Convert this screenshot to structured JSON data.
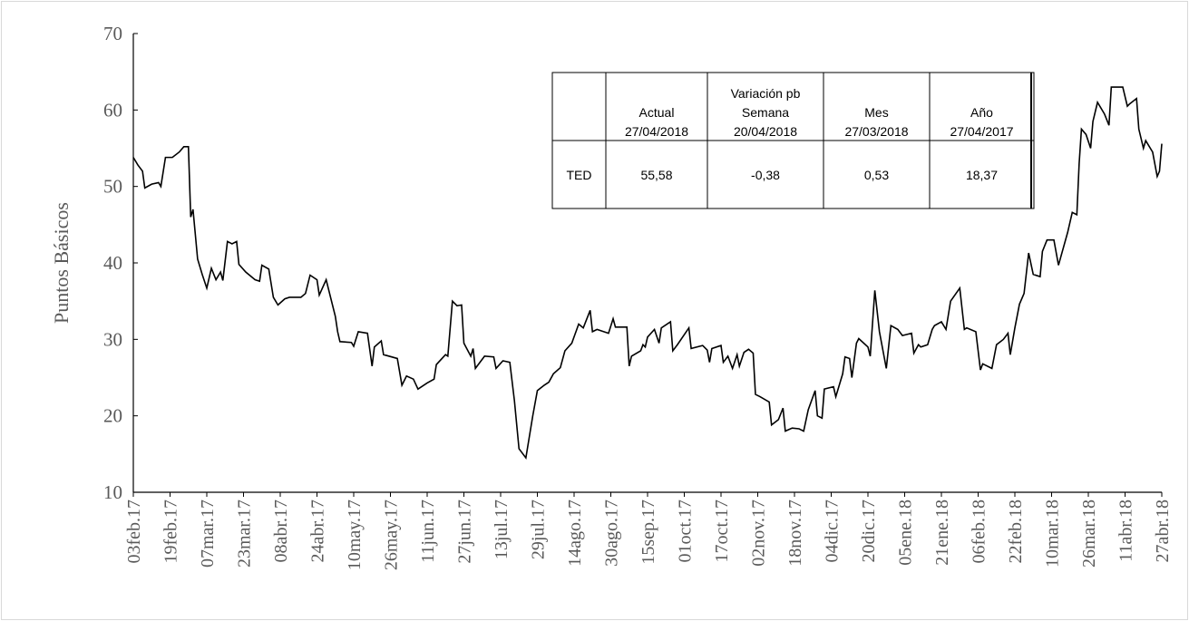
{
  "chart_data": {
    "type": "line",
    "y_label": "Puntos Básicos",
    "series": [
      {
        "name": "TED",
        "color": "#000000",
        "values": [
          53.8,
          52.8,
          52,
          49.8,
          50.3,
          50.5,
          50,
          53.8,
          53.8,
          54.5,
          55.2,
          55.2,
          46,
          47,
          40.5,
          38.5,
          36.7,
          39.3,
          37.8,
          38.8,
          37.7,
          42.8,
          42.5,
          42.8,
          39.8,
          38.8,
          37.8,
          37.6,
          39.7,
          39.2,
          35.5,
          34.5,
          35.3,
          35.5,
          35.5,
          36,
          38.4,
          37.8,
          35.8,
          37.8,
          33,
          31,
          29.7,
          29.6,
          29.1,
          31,
          30.8,
          26.5,
          29,
          29.8,
          28,
          27.5,
          24,
          25.2,
          24.8,
          23.5,
          24.3,
          24.8,
          26.7,
          28,
          27.8,
          35,
          34.4,
          34.5,
          29.5,
          27.8,
          28.8,
          26.2,
          27.8,
          27.7,
          26.2,
          27.2,
          27,
          22,
          15.7,
          14.5,
          20,
          23.3,
          24,
          24.4,
          25.5,
          26.3,
          28.5,
          29.5,
          32,
          31.5,
          33.8,
          31,
          31.3,
          30.8,
          32.7,
          31.6,
          31.6,
          26.5,
          27.8,
          28.5,
          29.3,
          29,
          30.3,
          31.3,
          29.5,
          31.5,
          32.3,
          28.5,
          29.3,
          31.5,
          28.8,
          29.2,
          28.6,
          27,
          28.8,
          29.2,
          27,
          27.8,
          26.2,
          28,
          26.5,
          28.3,
          28.7,
          28.2,
          22.8,
          22.5,
          21.8,
          18.8,
          19.5,
          21,
          18,
          18.4,
          18.3,
          18,
          20.8,
          23.3,
          20,
          19.7,
          23.5,
          23.8,
          22.5,
          25.5,
          27.7,
          27.5,
          25,
          29.5,
          30.1,
          29,
          27.8,
          36.4,
          31,
          26.2,
          31.8,
          31.3,
          30.5,
          30.8,
          28.2,
          29.3,
          29,
          29.3,
          31.3,
          31.8,
          32.3,
          31.3,
          35,
          36.7,
          31.3,
          31.5,
          31,
          26,
          26.8,
          26.2,
          29.3,
          30,
          30.8,
          28,
          31.5,
          34.6,
          36,
          41.3,
          38.5,
          38.2,
          41.5,
          43,
          43,
          39.7,
          44,
          46.6,
          46.3,
          53,
          57.5,
          56.8,
          55,
          58.5,
          61,
          59.5,
          58,
          63,
          63,
          63,
          60.5,
          60.8,
          61.5,
          57.5,
          55,
          56,
          54.5,
          51.3,
          52,
          55.58
        ]
      }
    ],
    "x": [
      "2017-02-03",
      "2017-02-05",
      "2017-02-07",
      "2017-02-08",
      "2017-02-11",
      "2017-02-14",
      "2017-02-15",
      "2017-02-17",
      "2017-02-20",
      "2017-02-23",
      "2017-02-25",
      "2017-02-27",
      "2017-02-28",
      "2017-03-01",
      "2017-03-03",
      "2017-03-05",
      "2017-03-07",
      "2017-03-09",
      "2017-03-11",
      "2017-03-13",
      "2017-03-14",
      "2017-03-16",
      "2017-03-18",
      "2017-03-20",
      "2017-03-21",
      "2017-03-24",
      "2017-03-28",
      "2017-03-30",
      "2017-03-31",
      "2017-04-03",
      "2017-04-05",
      "2017-04-07",
      "2017-04-10",
      "2017-04-12",
      "2017-04-17",
      "2017-04-19",
      "2017-04-21",
      "2017-04-24",
      "2017-04-25",
      "2017-04-28",
      "2017-05-02",
      "2017-05-03",
      "2017-05-04",
      "2017-05-09",
      "2017-05-10",
      "2017-05-12",
      "2017-05-16",
      "2017-05-18",
      "2017-05-19",
      "2017-05-22",
      "2017-05-23",
      "2017-05-29",
      "2017-05-31",
      "2017-06-02",
      "2017-06-05",
      "2017-06-07",
      "2017-06-11",
      "2017-06-14",
      "2017-06-15",
      "2017-06-19",
      "2017-06-20",
      "2017-06-22",
      "2017-06-24",
      "2017-06-26",
      "2017-06-27",
      "2017-06-30",
      "2017-07-01",
      "2017-07-02",
      "2017-07-06",
      "2017-07-10",
      "2017-07-11",
      "2017-07-14",
      "2017-07-17",
      "2017-07-19",
      "2017-07-21",
      "2017-07-24",
      "2017-07-27",
      "2017-07-29",
      "2017-08-01",
      "2017-08-03",
      "2017-08-05",
      "2017-08-08",
      "2017-08-10",
      "2017-08-13",
      "2017-08-16",
      "2017-08-18",
      "2017-08-21",
      "2017-08-22",
      "2017-08-24",
      "2017-08-29",
      "2017-08-31",
      "2017-09-01",
      "2017-09-06",
      "2017-09-07",
      "2017-09-08",
      "2017-09-12",
      "2017-09-13",
      "2017-09-14",
      "2017-09-15",
      "2017-09-18",
      "2017-09-20",
      "2017-09-21",
      "2017-09-25",
      "2017-09-26",
      "2017-09-28",
      "2017-10-03",
      "2017-10-04",
      "2017-10-09",
      "2017-10-11",
      "2017-10-12",
      "2017-10-13",
      "2017-10-17",
      "2017-10-18",
      "2017-10-20",
      "2017-10-22",
      "2017-10-24",
      "2017-10-25",
      "2017-10-27",
      "2017-10-29",
      "2017-10-31",
      "2017-11-01",
      "2017-11-03",
      "2017-11-07",
      "2017-11-08",
      "2017-11-11",
      "2017-11-13",
      "2017-11-14",
      "2017-11-17",
      "2017-11-20",
      "2017-11-22",
      "2017-11-24",
      "2017-11-27",
      "2017-11-28",
      "2017-11-30",
      "2017-12-01",
      "2017-12-05",
      "2017-12-06",
      "2017-12-09",
      "2017-12-10",
      "2017-12-12",
      "2017-12-13",
      "2017-12-15",
      "2017-12-16",
      "2017-12-20",
      "2017-12-21",
      "2017-12-23",
      "2017-12-25",
      "2017-12-28",
      "2017-12-30",
      "2018-01-02",
      "2018-01-04",
      "2018-01-08",
      "2018-01-09",
      "2018-01-11",
      "2018-01-12",
      "2018-01-15",
      "2018-01-17",
      "2018-01-18",
      "2018-01-21",
      "2018-01-23",
      "2018-01-25",
      "2018-01-29",
      "2018-01-31",
      "2018-02-01",
      "2018-02-05",
      "2018-02-07",
      "2018-02-08",
      "2018-02-12",
      "2018-02-14",
      "2018-02-17",
      "2018-02-19",
      "2018-02-20",
      "2018-02-22",
      "2018-02-24",
      "2018-02-26",
      "2018-02-28",
      "2018-03-02",
      "2018-03-05",
      "2018-03-06",
      "2018-03-08",
      "2018-03-11",
      "2018-03-13",
      "2018-03-17",
      "2018-03-19",
      "2018-03-21",
      "2018-03-22",
      "2018-03-23",
      "2018-03-25",
      "2018-03-27",
      "2018-03-28",
      "2018-03-30",
      "2018-04-02",
      "2018-04-04",
      "2018-04-05",
      "2018-04-08",
      "2018-04-10",
      "2018-04-12",
      "2018-04-13",
      "2018-04-16",
      "2018-04-17",
      "2018-04-19",
      "2018-04-20",
      "2018-04-23",
      "2018-04-25",
      "2018-04-26",
      "2018-04-27"
    ],
    "xlim": [
      "2017-02-03",
      "2018-04-27"
    ],
    "xticks": [
      {
        "value": "2017-02-03",
        "label": "03feb.17"
      },
      {
        "value": "2017-02-19",
        "label": "19feb.17"
      },
      {
        "value": "2017-03-07",
        "label": "07mar.17"
      },
      {
        "value": "2017-03-23",
        "label": "23mar.17"
      },
      {
        "value": "2017-04-08",
        "label": "08abr.17"
      },
      {
        "value": "2017-04-24",
        "label": "24abr.17"
      },
      {
        "value": "2017-05-10",
        "label": "10may.17"
      },
      {
        "value": "2017-05-26",
        "label": "26may.17"
      },
      {
        "value": "2017-06-11",
        "label": "11jun.17"
      },
      {
        "value": "2017-06-27",
        "label": "27jun.17"
      },
      {
        "value": "2017-07-13",
        "label": "13jul.17"
      },
      {
        "value": "2017-07-29",
        "label": "29jul.17"
      },
      {
        "value": "2017-08-14",
        "label": "14ago.17"
      },
      {
        "value": "2017-08-30",
        "label": "30ago.17"
      },
      {
        "value": "2017-09-15",
        "label": "15sep.17"
      },
      {
        "value": "2017-10-01",
        "label": "01oct.17"
      },
      {
        "value": "2017-10-17",
        "label": "17oct.17"
      },
      {
        "value": "2017-11-02",
        "label": "02nov.17"
      },
      {
        "value": "2017-11-18",
        "label": "18nov.17"
      },
      {
        "value": "2017-12-04",
        "label": "04dic.17"
      },
      {
        "value": "2017-12-20",
        "label": "20dic.17"
      },
      {
        "value": "2018-01-05",
        "label": "05ene.18"
      },
      {
        "value": "2018-01-21",
        "label": "21ene.18"
      },
      {
        "value": "2018-02-06",
        "label": "06feb.18"
      },
      {
        "value": "2018-02-22",
        "label": "22feb.18"
      },
      {
        "value": "2018-03-10",
        "label": "10mar.18"
      },
      {
        "value": "2018-03-26",
        "label": "26mar.18"
      },
      {
        "value": "2018-04-11",
        "label": "11abr.18"
      },
      {
        "value": "2018-04-27",
        "label": "27abr.18"
      }
    ],
    "ylim": [
      10,
      70
    ],
    "yticks": [
      10,
      20,
      30,
      40,
      50,
      60,
      70
    ]
  },
  "table": {
    "columns": [
      {
        "lines": [
          "Actual",
          "27/04/2018"
        ]
      },
      {
        "lines": [
          "Variación pb",
          "Semana",
          "20/04/2018"
        ]
      },
      {
        "lines": [
          "Mes",
          "27/03/2018"
        ]
      },
      {
        "lines": [
          "Año",
          "27/04/2017"
        ]
      }
    ],
    "rows": [
      {
        "label": "TED",
        "values": [
          "55,58",
          "-0,38",
          "0,53",
          "18,37"
        ]
      }
    ]
  }
}
